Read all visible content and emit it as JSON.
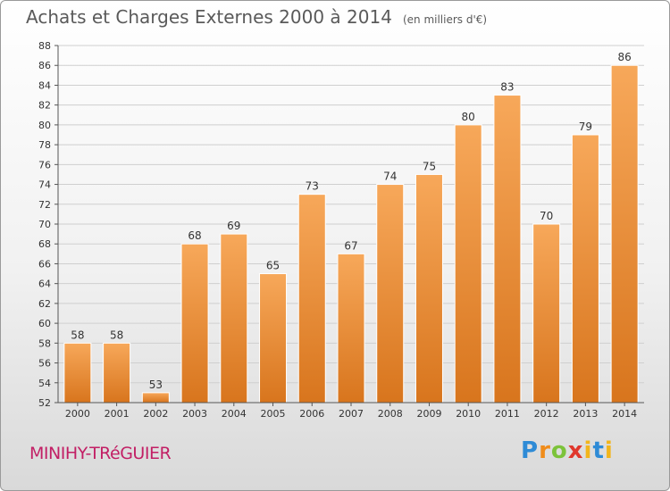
{
  "header": {
    "title": "Achats et Charges Externes 2000 à 2014",
    "unit": "(en milliers d'€)"
  },
  "footer": {
    "city": "MINIHY-TRéGUIER",
    "logo": "Proxiti"
  },
  "colors": {
    "bar_top": "#f7a85a",
    "bar_bottom": "#d8751d",
    "city": "#c21f65"
  },
  "chart_data": {
    "type": "bar",
    "title": "Achats et Charges Externes 2000 à 2014",
    "subtitle": "(en milliers d'€)",
    "categories": [
      "2000",
      "2001",
      "2002",
      "2003",
      "2004",
      "2005",
      "2006",
      "2007",
      "2008",
      "2009",
      "2010",
      "2011",
      "2012",
      "2013",
      "2014"
    ],
    "values": [
      58,
      58,
      53,
      68,
      69,
      65,
      73,
      67,
      74,
      75,
      80,
      83,
      70,
      79,
      86
    ],
    "ylim": [
      52,
      88
    ],
    "yticks": [
      52,
      54,
      56,
      58,
      60,
      62,
      64,
      66,
      68,
      70,
      72,
      74,
      76,
      78,
      80,
      82,
      84,
      86,
      88
    ],
    "grid": true,
    "legend": "none"
  }
}
